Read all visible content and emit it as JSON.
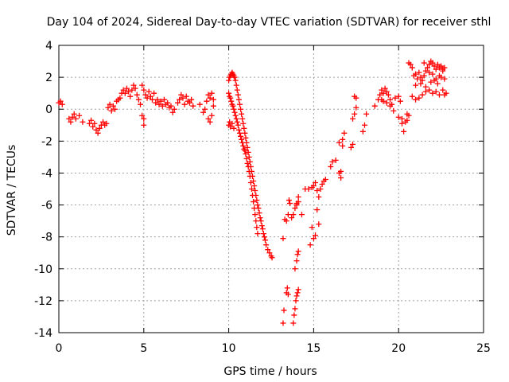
{
  "chart_data": {
    "type": "scatter",
    "title": "Day 104 of 2024, Sidereal Day-to-day VTEC variation (SDTVAR) for receiver sthl",
    "xlabel": "GPS time / hours",
    "ylabel": "SDTVAR / TECUs",
    "xlim": [
      0,
      25
    ],
    "ylim": [
      -14,
      4
    ],
    "xticks": [
      "0",
      "5",
      "10",
      "15",
      "20",
      "25"
    ],
    "yticks": [
      "-14",
      "-12",
      "-10",
      "-8",
      "-6",
      "-4",
      "-2",
      "0",
      "2",
      "4"
    ],
    "grid": true,
    "marker": "+",
    "color": "#ff0000",
    "series": [
      {
        "name": "SDTVAR",
        "points": [
          [
            0.0,
            0.4
          ],
          [
            0.1,
            0.5
          ],
          [
            0.2,
            0.3
          ],
          [
            0.6,
            -0.6
          ],
          [
            0.7,
            -0.8
          ],
          [
            0.8,
            -0.5
          ],
          [
            0.9,
            -0.3
          ],
          [
            1.0,
            -0.6
          ],
          [
            1.2,
            -0.4
          ],
          [
            1.4,
            -0.8
          ],
          [
            1.8,
            -0.9
          ],
          [
            1.9,
            -0.7
          ],
          [
            2.0,
            -1.1
          ],
          [
            2.1,
            -0.9
          ],
          [
            2.2,
            -1.3
          ],
          [
            2.3,
            -1.5
          ],
          [
            2.4,
            -1.2
          ],
          [
            2.5,
            -1.0
          ],
          [
            2.6,
            -0.8
          ],
          [
            2.7,
            -1.0
          ],
          [
            2.8,
            -0.9
          ],
          [
            2.9,
            0.1
          ],
          [
            3.0,
            0.3
          ],
          [
            3.1,
            -0.1
          ],
          [
            3.2,
            0.2
          ],
          [
            3.3,
            0.0
          ],
          [
            3.4,
            0.5
          ],
          [
            3.5,
            0.6
          ],
          [
            3.6,
            0.7
          ],
          [
            3.7,
            1.0
          ],
          [
            3.8,
            1.2
          ],
          [
            3.9,
            1.0
          ],
          [
            4.0,
            1.3
          ],
          [
            4.1,
            1.1
          ],
          [
            4.2,
            0.8
          ],
          [
            4.3,
            1.2
          ],
          [
            4.4,
            1.5
          ],
          [
            4.5,
            1.3
          ],
          [
            4.6,
            0.9
          ],
          [
            4.7,
            0.6
          ],
          [
            4.8,
            0.3
          ],
          [
            4.9,
            -0.4
          ],
          [
            5.0,
            -0.6
          ],
          [
            5.0,
            -1.0
          ],
          [
            4.9,
            1.5
          ],
          [
            5.0,
            1.2
          ],
          [
            5.1,
            0.9
          ],
          [
            5.2,
            0.7
          ],
          [
            5.3,
            1.1
          ],
          [
            5.4,
            0.8
          ],
          [
            5.5,
            0.6
          ],
          [
            5.6,
            1.0
          ],
          [
            5.7,
            0.4
          ],
          [
            5.8,
            0.6
          ],
          [
            5.9,
            0.3
          ],
          [
            6.0,
            0.5
          ],
          [
            6.1,
            0.2
          ],
          [
            6.2,
            0.6
          ],
          [
            6.3,
            0.3
          ],
          [
            6.4,
            0.4
          ],
          [
            6.5,
            0.1
          ],
          [
            6.6,
            0.2
          ],
          [
            6.7,
            -0.2
          ],
          [
            6.8,
            0.0
          ],
          [
            7.0,
            0.4
          ],
          [
            7.1,
            0.6
          ],
          [
            7.2,
            0.9
          ],
          [
            7.3,
            0.7
          ],
          [
            7.4,
            0.3
          ],
          [
            7.5,
            0.8
          ],
          [
            7.6,
            0.5
          ],
          [
            7.7,
            0.4
          ],
          [
            7.8,
            0.6
          ],
          [
            7.9,
            0.2
          ],
          [
            8.3,
            0.3
          ],
          [
            8.5,
            -0.2
          ],
          [
            8.6,
            0.0
          ],
          [
            8.8,
            -0.6
          ],
          [
            8.9,
            -0.8
          ],
          [
            9.0,
            -0.4
          ],
          [
            8.7,
            0.5
          ],
          [
            8.8,
            0.9
          ],
          [
            8.9,
            0.7
          ],
          [
            9.0,
            1.0
          ],
          [
            9.1,
            0.6
          ],
          [
            9.1,
            0.2
          ],
          [
            10.0,
            -1.0
          ],
          [
            10.05,
            -0.8
          ],
          [
            10.1,
            -1.1
          ],
          [
            10.2,
            -0.9
          ],
          [
            10.3,
            -1.2
          ],
          [
            10.0,
            1.0
          ],
          [
            10.05,
            0.8
          ],
          [
            10.1,
            0.7
          ],
          [
            10.15,
            0.5
          ],
          [
            10.2,
            0.3
          ],
          [
            10.25,
            0.2
          ],
          [
            10.3,
            0.0
          ],
          [
            10.35,
            -0.2
          ],
          [
            10.4,
            -0.4
          ],
          [
            10.45,
            -0.6
          ],
          [
            10.5,
            -0.8
          ],
          [
            10.55,
            -1.0
          ],
          [
            10.6,
            -1.3
          ],
          [
            10.65,
            -1.5
          ],
          [
            10.7,
            -1.7
          ],
          [
            10.75,
            -1.9
          ],
          [
            10.8,
            -2.1
          ],
          [
            10.85,
            -2.3
          ],
          [
            10.9,
            -2.5
          ],
          [
            10.95,
            -2.6
          ],
          [
            11.0,
            -2.8
          ],
          [
            11.05,
            -3.1
          ],
          [
            11.1,
            -3.4
          ],
          [
            11.15,
            -3.6
          ],
          [
            11.2,
            -3.9
          ],
          [
            11.25,
            -4.2
          ],
          [
            11.3,
            -4.6
          ],
          [
            11.35,
            -5.0
          ],
          [
            11.4,
            -5.4
          ],
          [
            11.45,
            -5.8
          ],
          [
            11.5,
            -6.2
          ],
          [
            11.55,
            -6.6
          ],
          [
            11.6,
            -7.0
          ],
          [
            11.65,
            -7.4
          ],
          [
            11.7,
            -7.8
          ],
          [
            10.0,
            1.8
          ],
          [
            10.05,
            2.0
          ],
          [
            10.1,
            2.1
          ],
          [
            10.15,
            2.2
          ],
          [
            10.2,
            2.3
          ],
          [
            10.25,
            2.2
          ],
          [
            10.3,
            2.1
          ],
          [
            10.35,
            2.0
          ],
          [
            10.4,
            1.8
          ],
          [
            10.45,
            1.5
          ],
          [
            10.5,
            1.2
          ],
          [
            10.55,
            0.9
          ],
          [
            10.6,
            0.6
          ],
          [
            10.65,
            0.3
          ],
          [
            10.7,
            0.0
          ],
          [
            10.75,
            -0.3
          ],
          [
            10.8,
            -0.6
          ],
          [
            10.85,
            -0.9
          ],
          [
            10.9,
            -1.2
          ],
          [
            10.95,
            -1.5
          ],
          [
            11.0,
            -1.8
          ],
          [
            11.05,
            -2.1
          ],
          [
            11.1,
            -2.4
          ],
          [
            11.15,
            -2.7
          ],
          [
            11.2,
            -3.0
          ],
          [
            11.25,
            -3.3
          ],
          [
            11.3,
            -3.6
          ],
          [
            11.35,
            -3.9
          ],
          [
            11.4,
            -4.2
          ],
          [
            11.45,
            -4.5
          ],
          [
            11.5,
            -4.8
          ],
          [
            11.55,
            -5.1
          ],
          [
            11.6,
            -5.4
          ],
          [
            11.65,
            -5.7
          ],
          [
            11.7,
            -6.0
          ],
          [
            11.75,
            -6.2
          ],
          [
            11.8,
            -6.5
          ],
          [
            11.85,
            -6.8
          ],
          [
            11.9,
            -7.0
          ],
          [
            11.95,
            -7.3
          ],
          [
            12.0,
            -7.5
          ],
          [
            12.05,
            -7.8
          ],
          [
            12.1,
            -8.0
          ],
          [
            12.15,
            -8.2
          ],
          [
            12.2,
            -8.5
          ],
          [
            12.3,
            -8.8
          ],
          [
            12.4,
            -9.0
          ],
          [
            12.5,
            -9.2
          ],
          [
            12.55,
            -9.3
          ],
          [
            13.2,
            -8.1
          ],
          [
            13.3,
            -6.9
          ],
          [
            13.4,
            -7.0
          ],
          [
            13.5,
            -6.6
          ],
          [
            13.55,
            -5.7
          ],
          [
            13.6,
            -5.9
          ],
          [
            13.7,
            -6.8
          ],
          [
            13.8,
            -6.6
          ],
          [
            13.9,
            -6.2
          ],
          [
            14.0,
            -6.0
          ],
          [
            14.1,
            -5.8
          ],
          [
            13.2,
            -13.4
          ],
          [
            13.25,
            -12.6
          ],
          [
            13.4,
            -11.5
          ],
          [
            13.45,
            -11.2
          ],
          [
            13.5,
            -11.6
          ],
          [
            13.8,
            -13.4
          ],
          [
            13.85,
            -12.9
          ],
          [
            13.9,
            -12.5
          ],
          [
            13.95,
            -12.0
          ],
          [
            14.0,
            -11.7
          ],
          [
            14.05,
            -11.5
          ],
          [
            14.1,
            -11.3
          ],
          [
            13.9,
            -10.0
          ],
          [
            14.0,
            -9.5
          ],
          [
            14.05,
            -9.1
          ],
          [
            14.1,
            -8.9
          ],
          [
            14.0,
            -5.9
          ],
          [
            14.1,
            -5.5
          ],
          [
            14.3,
            -6.6
          ],
          [
            14.5,
            -5.0
          ],
          [
            14.7,
            -5.0
          ],
          [
            14.9,
            -4.9
          ],
          [
            15.0,
            -4.8
          ],
          [
            15.1,
            -4.6
          ],
          [
            15.2,
            -5.1
          ],
          [
            15.3,
            -5.5
          ],
          [
            15.4,
            -5.0
          ],
          [
            15.5,
            -4.7
          ],
          [
            15.6,
            -4.5
          ],
          [
            15.7,
            -4.4
          ],
          [
            14.8,
            -8.5
          ],
          [
            15.0,
            -8.1
          ],
          [
            15.1,
            -7.9
          ],
          [
            15.3,
            -7.2
          ],
          [
            14.9,
            -7.4
          ],
          [
            15.2,
            -6.3
          ],
          [
            16.0,
            -3.6
          ],
          [
            16.1,
            -3.3
          ],
          [
            16.3,
            -3.2
          ],
          [
            16.5,
            -4.0
          ],
          [
            16.6,
            -3.9
          ],
          [
            16.6,
            -4.3
          ],
          [
            16.5,
            -2.1
          ],
          [
            16.7,
            -2.3
          ],
          [
            16.8,
            -1.5
          ],
          [
            16.7,
            -1.9
          ],
          [
            17.3,
            -0.6
          ],
          [
            17.4,
            -0.3
          ],
          [
            17.5,
            0.1
          ],
          [
            17.4,
            0.8
          ],
          [
            17.5,
            0.7
          ],
          [
            17.2,
            -2.4
          ],
          [
            17.3,
            -2.2
          ],
          [
            17.9,
            -1.4
          ],
          [
            18.0,
            -1.0
          ],
          [
            18.1,
            -0.3
          ],
          [
            18.6,
            0.2
          ],
          [
            18.8,
            0.6
          ],
          [
            18.9,
            0.9
          ],
          [
            19.0,
            1.2
          ],
          [
            19.1,
            1.0
          ],
          [
            19.2,
            1.3
          ],
          [
            19.3,
            1.1
          ],
          [
            19.4,
            0.9
          ],
          [
            19.5,
            0.6
          ],
          [
            19.6,
            0.3
          ],
          [
            19.7,
            -0.1
          ],
          [
            19.0,
            0.6
          ],
          [
            19.1,
            0.5
          ],
          [
            19.3,
            0.4
          ],
          [
            19.5,
            0.2
          ],
          [
            19.8,
            0.7
          ],
          [
            20.0,
            0.8
          ],
          [
            20.1,
            0.5
          ],
          [
            20.0,
            -0.5
          ],
          [
            20.2,
            -0.6
          ],
          [
            20.4,
            -0.8
          ],
          [
            20.5,
            -0.7
          ],
          [
            20.6,
            -0.4
          ],
          [
            20.3,
            -1.4
          ],
          [
            20.2,
            -0.9
          ],
          [
            20.5,
            -0.3
          ],
          [
            20.6,
            2.9
          ],
          [
            20.7,
            2.8
          ],
          [
            20.8,
            2.6
          ],
          [
            20.9,
            2.1
          ],
          [
            21.0,
            2.2
          ],
          [
            21.1,
            1.9
          ],
          [
            21.2,
            2.3
          ],
          [
            21.3,
            2.0
          ],
          [
            21.4,
            1.8
          ],
          [
            21.5,
            2.1
          ],
          [
            21.6,
            2.4
          ],
          [
            21.7,
            2.6
          ],
          [
            21.8,
            2.8
          ],
          [
            21.9,
            3.0
          ],
          [
            22.0,
            2.9
          ],
          [
            22.1,
            2.7
          ],
          [
            22.2,
            2.5
          ],
          [
            22.3,
            2.8
          ],
          [
            22.4,
            2.6
          ],
          [
            22.5,
            2.7
          ],
          [
            22.6,
            2.4
          ],
          [
            22.7,
            2.6
          ],
          [
            21.5,
            2.9
          ],
          [
            21.8,
            2.3
          ],
          [
            22.0,
            2.2
          ],
          [
            22.2,
            1.9
          ],
          [
            22.4,
            2.1
          ],
          [
            22.6,
            2.5
          ],
          [
            21.0,
            1.5
          ],
          [
            21.3,
            1.6
          ],
          [
            21.6,
            1.4
          ],
          [
            21.9,
            1.7
          ],
          [
            22.1,
            1.8
          ],
          [
            22.3,
            1.6
          ],
          [
            22.5,
            2.0
          ],
          [
            22.7,
            1.9
          ],
          [
            20.8,
            0.8
          ],
          [
            21.0,
            0.6
          ],
          [
            21.2,
            0.7
          ],
          [
            21.4,
            0.9
          ],
          [
            21.6,
            1.1
          ],
          [
            21.8,
            1.2
          ],
          [
            22.0,
            1.0
          ],
          [
            22.2,
            1.1
          ],
          [
            22.4,
            0.9
          ],
          [
            22.6,
            1.2
          ],
          [
            22.8,
            1.0
          ],
          [
            22.7,
            0.9
          ]
        ]
      }
    ]
  }
}
